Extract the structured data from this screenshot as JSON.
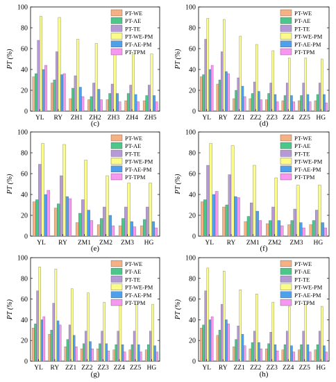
{
  "colors": {
    "PT-WE": "#f5b183",
    "PT-AE": "#4cc78a",
    "PT-TE": "#b69ad8",
    "PT-WE-PM": "#fbfb8a",
    "PT-AE-PM": "#4fa0ec",
    "PT-TPM": "#f698f0"
  },
  "chart_data": [
    {
      "type": "bar",
      "label": "(c)",
      "ylabel": "PT (%)",
      "ylim": [
        0,
        100
      ],
      "yticks": [
        "0",
        "20",
        "40",
        "60",
        "80",
        "100"
      ],
      "legend": [
        "PT-WE",
        "PT-AE",
        "PT-TE",
        "PT-WE-PM",
        "PT-AE-PM",
        "PT-TPM"
      ],
      "legend_position": "top-right",
      "categories": [
        "YL",
        "RY",
        "ZH1",
        "ZH2",
        "ZH3",
        "ZH4",
        "ZH5"
      ],
      "series": [
        {
          "name": "PT-WE",
          "values": [
            33,
            27,
            12,
            11,
            11,
            10,
            10
          ]
        },
        {
          "name": "PT-AE",
          "values": [
            36,
            30,
            22,
            14,
            17,
            17,
            15
          ]
        },
        {
          "name": "PT-TE",
          "values": [
            68,
            57,
            34,
            27,
            26,
            25,
            25
          ]
        },
        {
          "name": "PT-WE-PM",
          "values": [
            91,
            90,
            69,
            65,
            58,
            55,
            55
          ]
        },
        {
          "name": "PT-AE-PM",
          "values": [
            40,
            35,
            23,
            21,
            17,
            16,
            15
          ]
        },
        {
          "name": "PT-TPM",
          "values": [
            44,
            36,
            14,
            11,
            9,
            9,
            9
          ]
        }
      ]
    },
    {
      "type": "bar",
      "label": "(d)",
      "ylabel": "PT (%)",
      "ylim": [
        0,
        100
      ],
      "yticks": [
        "0",
        "20",
        "40",
        "60",
        "80",
        "100"
      ],
      "legend": [
        "PT-WE",
        "PT-AE",
        "PT-TE",
        "PT-WE-PM",
        "PT-AE-PM",
        "PT-TPM"
      ],
      "legend_position": "top-right",
      "categories": [
        "YL",
        "RY",
        "ZZ1",
        "ZZ2",
        "ZZ3",
        "ZZ4",
        "ZZ5",
        "HG"
      ],
      "series": [
        {
          "name": "PT-WE",
          "values": [
            33,
            26,
            12,
            12,
            11,
            10,
            10,
            10
          ]
        },
        {
          "name": "PT-AE",
          "values": [
            35,
            30,
            20,
            17,
            17,
            15,
            15,
            16
          ]
        },
        {
          "name": "PT-TE",
          "values": [
            69,
            57,
            32,
            28,
            27,
            27,
            27,
            27
          ]
        },
        {
          "name": "PT-WE-PM",
          "values": [
            89,
            88,
            72,
            64,
            58,
            51,
            51,
            50
          ]
        },
        {
          "name": "PT-AE-PM",
          "values": [
            40,
            38,
            24,
            19,
            16,
            15,
            16,
            16
          ]
        },
        {
          "name": "PT-TPM",
          "values": [
            44,
            36,
            14,
            11,
            9,
            9,
            9,
            8
          ]
        }
      ]
    },
    {
      "type": "bar",
      "label": "(e)",
      "ylabel": "PT (%)",
      "ylim": [
        0,
        100
      ],
      "yticks": [
        "0",
        "20",
        "40",
        "60",
        "80",
        "100"
      ],
      "legend": [
        "PT-WE",
        "PT-AE",
        "PT-TE",
        "PT-WE-PM",
        "PT-AE-PM",
        "PT-TPM"
      ],
      "legend_position": "top-right",
      "categories": [
        "YL",
        "RY",
        "ZM1",
        "ZM2",
        "ZM3",
        "HG"
      ],
      "series": [
        {
          "name": "PT-WE",
          "values": [
            33,
            27,
            13,
            11,
            10,
            10
          ]
        },
        {
          "name": "PT-AE",
          "values": [
            35,
            31,
            22,
            17,
            17,
            16
          ]
        },
        {
          "name": "PT-TE",
          "values": [
            69,
            58,
            35,
            28,
            28,
            28
          ]
        },
        {
          "name": "PT-WE-PM",
          "values": [
            89,
            88,
            73,
            58,
            51,
            51
          ]
        },
        {
          "name": "PT-AE-PM",
          "values": [
            40,
            38,
            25,
            20,
            14,
            14
          ]
        },
        {
          "name": "PT-TPM",
          "values": [
            44,
            36,
            15,
            10,
            9,
            8
          ]
        }
      ]
    },
    {
      "type": "bar",
      "label": "(f)",
      "ylabel": "PT (%)",
      "ylim": [
        0,
        100
      ],
      "yticks": [
        "0",
        "20",
        "40",
        "60",
        "80",
        "100"
      ],
      "legend": [
        "PT-WE",
        "PT-AE",
        "PT-TE",
        "PT-WE-PM",
        "PT-AE-PM",
        "PT-TPM"
      ],
      "legend_position": "top-right",
      "categories": [
        "YL",
        "RY",
        "ZM1",
        "ZM2",
        "ZM3",
        "HG"
      ],
      "series": [
        {
          "name": "PT-WE",
          "values": [
            33,
            28,
            14,
            12,
            11,
            11
          ]
        },
        {
          "name": "PT-AE",
          "values": [
            35,
            30,
            19,
            15,
            15,
            15
          ]
        },
        {
          "name": "PT-TE",
          "values": [
            68,
            59,
            32,
            28,
            26,
            25
          ]
        },
        {
          "name": "PT-WE-PM",
          "values": [
            89,
            87,
            68,
            56,
            49,
            49
          ]
        },
        {
          "name": "PT-AE-PM",
          "values": [
            40,
            38,
            24,
            15,
            13,
            13
          ]
        },
        {
          "name": "PT-TPM",
          "values": [
            43,
            37,
            15,
            10,
            8,
            8
          ]
        }
      ]
    },
    {
      "type": "bar",
      "label": "(g)",
      "ylabel": "PT (%)",
      "ylim": [
        0,
        100
      ],
      "yticks": [
        "0",
        "20",
        "40",
        "60",
        "80",
        "100"
      ],
      "legend": [
        "PT-WE",
        "PT-AE",
        "PT-TE",
        "PT-WE-PM",
        "PT-AE-PM",
        "PT-TPM"
      ],
      "legend_position": "top-right",
      "categories": [
        "YL",
        "RY",
        "ZZ1",
        "ZZ2",
        "ZZ3",
        "ZZ4",
        "ZZ5",
        "HG"
      ],
      "series": [
        {
          "name": "PT-WE",
          "values": [
            32,
            26,
            14,
            12,
            12,
            11,
            11,
            11
          ]
        },
        {
          "name": "PT-AE",
          "values": [
            36,
            30,
            21,
            17,
            17,
            16,
            16,
            16
          ]
        },
        {
          "name": "PT-TE",
          "values": [
            68,
            56,
            35,
            29,
            29,
            29,
            29,
            29
          ]
        },
        {
          "name": "PT-WE-PM",
          "values": [
            91,
            89,
            70,
            66,
            57,
            55,
            55,
            55
          ]
        },
        {
          "name": "PT-AE-PM",
          "values": [
            40,
            39,
            25,
            19,
            17,
            16,
            16,
            15
          ]
        },
        {
          "name": "PT-TPM",
          "values": [
            43,
            35,
            14,
            12,
            10,
            9,
            9,
            9
          ]
        }
      ]
    },
    {
      "type": "bar",
      "label": "(h)",
      "ylabel": "PT (%)",
      "ylim": [
        0,
        100
      ],
      "yticks": [
        "0",
        "20",
        "40",
        "60",
        "80",
        "100"
      ],
      "legend": [
        "PT-WE",
        "PT-AE",
        "PT-TE",
        "PT-WE-PM",
        "PT-AE-PM",
        "PT-TPM"
      ],
      "legend_position": "top-right",
      "categories": [
        "YL",
        "RY",
        "ZZ1",
        "ZZ2",
        "ZZ3",
        "ZZ4",
        "ZZ5",
        "HG"
      ],
      "series": [
        {
          "name": "PT-WE",
          "values": [
            32,
            25,
            14,
            12,
            12,
            11,
            11,
            11
          ]
        },
        {
          "name": "PT-AE",
          "values": [
            35,
            30,
            21,
            18,
            17,
            16,
            16,
            16
          ]
        },
        {
          "name": "PT-TE",
          "values": [
            68,
            55,
            34,
            29,
            28,
            29,
            29,
            29
          ]
        },
        {
          "name": "PT-WE-PM",
          "values": [
            90,
            87,
            69,
            65,
            57,
            53,
            55,
            53
          ]
        },
        {
          "name": "PT-AE-PM",
          "values": [
            40,
            40,
            26,
            18,
            16,
            15,
            16,
            15
          ]
        },
        {
          "name": "PT-TPM",
          "values": [
            43,
            36,
            15,
            12,
            10,
            9,
            9,
            9
          ]
        }
      ]
    }
  ]
}
